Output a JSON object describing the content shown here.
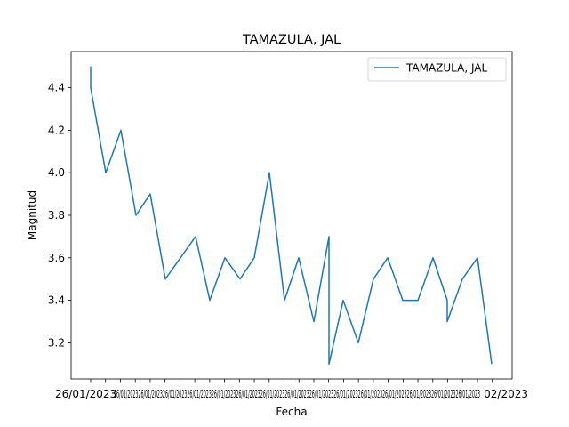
{
  "chart_data": {
    "type": "line",
    "title": "TAMAZULA, JAL",
    "xlabel": "Fecha",
    "ylabel": "Magnitud",
    "ylim": [
      3.03,
      4.57
    ],
    "yticks": [
      "3.2",
      "3.4",
      "3.6",
      "3.8",
      "4.0",
      "4.2",
      "4.4"
    ],
    "legend": {
      "placement": "top-right"
    },
    "grid": false,
    "color": "#1f77b4",
    "series": [
      {
        "name": "TAMAZULA, JAL",
        "points": [
          {
            "x": "26/01/2023",
            "y": 4.5
          },
          {
            "x": "26/01/2023",
            "y": 4.4
          },
          {
            "x": "",
            "y": 4.0
          },
          {
            "x": "",
            "y": 4.2
          },
          {
            "x": "",
            "y": 3.8
          },
          {
            "x": "",
            "y": 3.9
          },
          {
            "x": "",
            "y": 3.5
          },
          {
            "x": "",
            "y": 3.6
          },
          {
            "x": "",
            "y": 3.7
          },
          {
            "x": "",
            "y": 3.4
          },
          {
            "x": "",
            "y": 3.6
          },
          {
            "x": "",
            "y": 3.5
          },
          {
            "x": "",
            "y": 3.6
          },
          {
            "x": "",
            "y": 4.0
          },
          {
            "x": "",
            "y": 3.4
          },
          {
            "x": "",
            "y": 3.6
          },
          {
            "x": "",
            "y": 3.3
          },
          {
            "x": "",
            "y": 3.7
          },
          {
            "x": "",
            "y": 3.1
          },
          {
            "x": "",
            "y": 3.4
          },
          {
            "x": "",
            "y": 3.2
          },
          {
            "x": "",
            "y": 3.5
          },
          {
            "x": "",
            "y": 3.6
          },
          {
            "x": "",
            "y": 3.4
          },
          {
            "x": "",
            "y": 3.4
          },
          {
            "x": "",
            "y": 3.6
          },
          {
            "x": "",
            "y": 3.4
          },
          {
            "x": "",
            "y": 3.3
          },
          {
            "x": "",
            "y": 3.5
          },
          {
            "x": "",
            "y": 3.6
          },
          {
            "x": "02/2023",
            "y": 3.1
          }
        ]
      }
    ]
  }
}
